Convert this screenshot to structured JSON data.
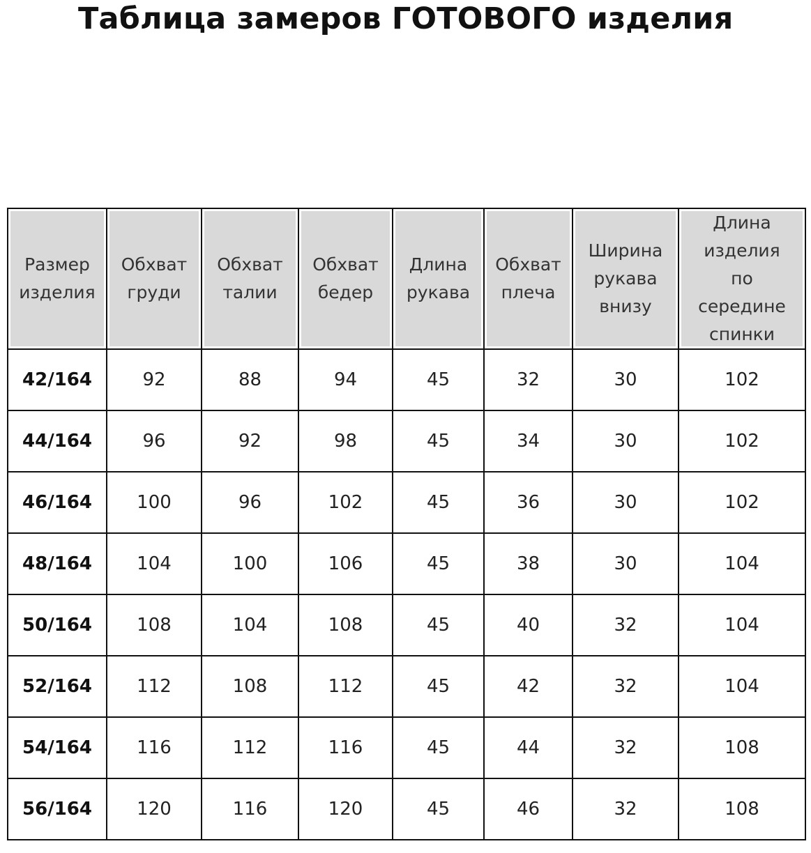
{
  "title": "Таблица замеров ГОТОВОГО изделия",
  "table": {
    "headers": [
      [
        "Размер",
        "изделия"
      ],
      [
        "Обхват",
        "груди"
      ],
      [
        "Обхват",
        "талии"
      ],
      [
        "Обхват",
        "бедер"
      ],
      [
        "Длина",
        "рукава"
      ],
      [
        "Обхват",
        "плеча"
      ],
      [
        "Ширина",
        "рукава",
        "внизу"
      ],
      [
        "Длина",
        "изделия",
        "по",
        "середине",
        "спинки"
      ]
    ],
    "rows": [
      [
        "42/164",
        "92",
        "88",
        "94",
        "45",
        "32",
        "30",
        "102"
      ],
      [
        "44/164",
        "96",
        "92",
        "98",
        "45",
        "34",
        "30",
        "102"
      ],
      [
        "46/164",
        "100",
        "96",
        "102",
        "45",
        "36",
        "30",
        "102"
      ],
      [
        "48/164",
        "104",
        "100",
        "106",
        "45",
        "38",
        "30",
        "104"
      ],
      [
        "50/164",
        "108",
        "104",
        "108",
        "45",
        "40",
        "32",
        "104"
      ],
      [
        "52/164",
        "112",
        "108",
        "112",
        "45",
        "42",
        "32",
        "104"
      ],
      [
        "54/164",
        "116",
        "112",
        "116",
        "45",
        "44",
        "32",
        "108"
      ],
      [
        "56/164",
        "120",
        "116",
        "120",
        "45",
        "46",
        "32",
        "108"
      ]
    ]
  }
}
